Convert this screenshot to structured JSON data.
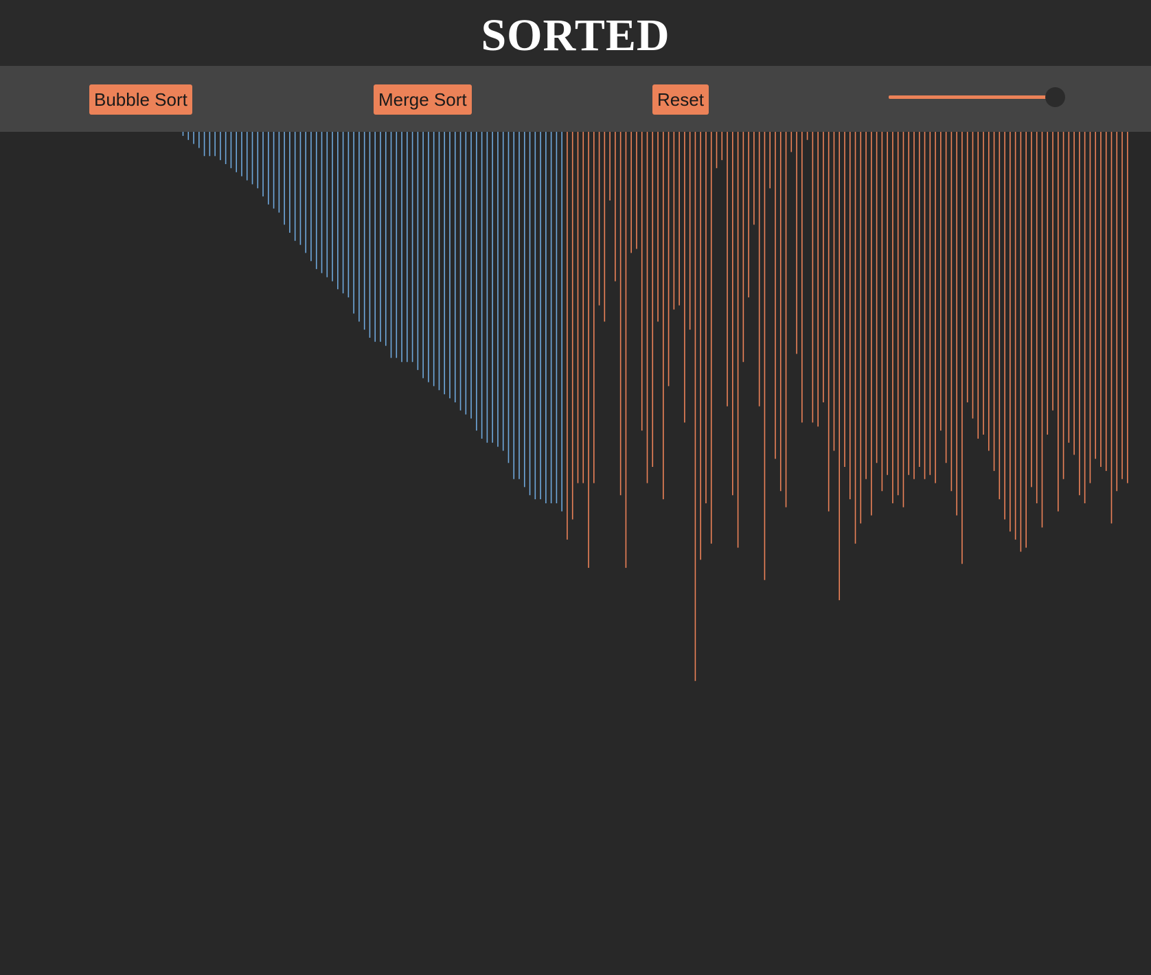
{
  "header": {
    "title": "SORTED"
  },
  "toolbar": {
    "bubble_label": "Bubble Sort",
    "merge_label": "Merge Sort",
    "reset_label": "Reset",
    "speed_slider": {
      "value_fraction": 1.0
    }
  },
  "colors": {
    "background": "#282828",
    "header_bg": "#2a2a2a",
    "toolbar_bg": "#444444",
    "accent": "#ec8258",
    "sorted_bar": "#6fa8dc",
    "unsorted_bar": "#ec8258",
    "title": "#ffffff"
  },
  "chart_data": {
    "type": "bar",
    "orientation": "hanging",
    "sorted_count": 72,
    "values": [
      15,
      30,
      45,
      60,
      90,
      90,
      90,
      105,
      120,
      135,
      150,
      165,
      180,
      195,
      210,
      240,
      270,
      285,
      300,
      345,
      375,
      405,
      420,
      450,
      480,
      510,
      525,
      540,
      555,
      585,
      600,
      615,
      675,
      705,
      735,
      765,
      780,
      780,
      795,
      840,
      840,
      855,
      855,
      855,
      885,
      915,
      930,
      945,
      960,
      975,
      990,
      1005,
      1035,
      1050,
      1065,
      1110,
      1140,
      1155,
      1155,
      1170,
      1185,
      1230,
      1290,
      1290,
      1320,
      1350,
      1365,
      1365,
      1380,
      1380,
      1380,
      1410,
      1515,
      1440,
      1305,
      1305,
      1620,
      1305,
      645,
      705,
      255,
      555,
      1350,
      1620,
      450,
      435,
      1110,
      1305,
      1245,
      705,
      1365,
      945,
      660,
      645,
      1080,
      735,
      2040,
      1590,
      1380,
      1530,
      135,
      105,
      1020,
      1350,
      1545,
      855,
      615,
      345,
      1020,
      1665,
      210,
      1215,
      1335,
      1395,
      75,
      825,
      1080,
      30,
      1080,
      1095,
      1005,
      1410,
      1185,
      1740,
      1245,
      1365,
      1530,
      1455,
      1290,
      1425,
      1230,
      1335,
      1275,
      1380,
      1350,
      1395,
      1275,
      1290,
      1245,
      1290,
      1275,
      1305,
      1110,
      1230,
      1335,
      1425,
      1605,
      1005,
      1065,
      1140,
      1125,
      1185,
      1260,
      1365,
      1440,
      1485,
      1515,
      1560,
      1545,
      1320,
      1380,
      1470,
      1125,
      1035,
      1410,
      1290,
      1155,
      1200,
      1350,
      1380,
      1305,
      1215,
      1245,
      1260,
      1455,
      1335,
      1290,
      1305
    ]
  }
}
